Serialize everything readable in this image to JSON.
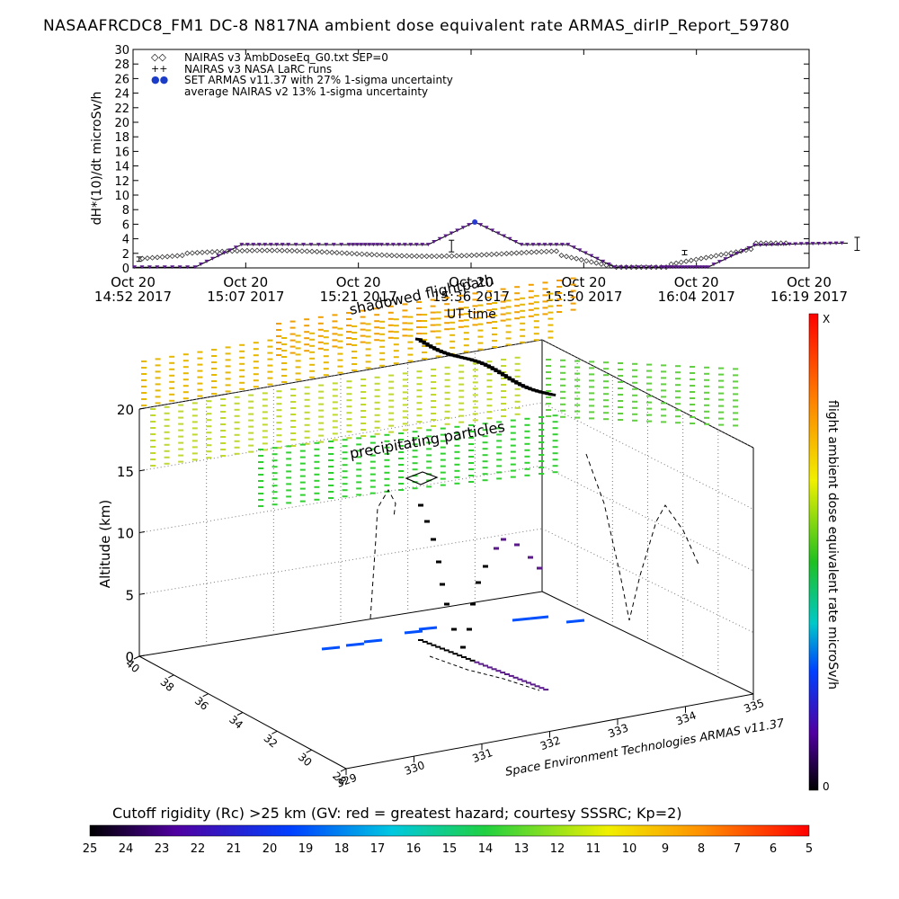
{
  "chart_data": [
    {
      "type": "line",
      "title": "NASAAFRCDC8_FM1 DC-8   N817NA ambient dose equivalent rate ARMAS_dirIP_Report_59780",
      "ylabel": "dH*(10)/dt microSv/h",
      "xlabel": "UT time",
      "ylim": [
        0,
        30
      ],
      "yticks": [
        "0",
        "2",
        "4",
        "6",
        "8",
        "10",
        "12",
        "14",
        "16",
        "18",
        "20",
        "22",
        "24",
        "26",
        "28",
        "30"
      ],
      "xticks": [
        [
          "Oct 20",
          "14:52 2017"
        ],
        [
          "Oct 20",
          "15:07 2017"
        ],
        [
          "Oct 20",
          "15:21 2017"
        ],
        [
          "Oct 20",
          "15:36 2017"
        ],
        [
          "Oct 20",
          "15:50 2017"
        ],
        [
          "Oct 20",
          "16:04 2017"
        ],
        [
          "Oct 20",
          "16:19 2017"
        ]
      ],
      "legend_placement": "top-left",
      "legend": [
        {
          "marker": "◇◇",
          "label": "NAIRAS v3 AmbDoseEq_G0.txt SEP=0"
        },
        {
          "marker": "++",
          "label": "NAIRAS v3 NASA LaRC runs"
        },
        {
          "marker": "●●",
          "label": "SET ARMAS v11.37 with 27% 1-sigma uncertainty"
        },
        {
          "marker": "",
          "label": "average NAIRAS v2 13% 1-sigma uncertainty"
        }
      ],
      "series": [
        {
          "name": "SET ARMAS v11.37 with 27% 1-sigma uncertainty",
          "color": "#5a1a8a",
          "x": [
            14.87,
            15.0,
            15.1,
            15.2,
            15.33,
            15.4,
            15.5,
            15.6,
            15.7,
            15.8,
            15.9,
            16.0,
            16.05,
            16.1,
            16.2,
            16.3,
            16.4
          ],
          "y": [
            0.1,
            0.1,
            3.2,
            3.2,
            3.2,
            3.2,
            3.2,
            6.3,
            3.2,
            3.2,
            0.1,
            0.1,
            0.1,
            0.1,
            3.1,
            3.3,
            3.4
          ]
        }
      ]
    },
    {
      "type": "scatter",
      "ylabel": "Altitude (km)",
      "zticks": [
        "0",
        "5",
        "10",
        "15",
        "20"
      ],
      "lat_ticks": [
        "40",
        "38",
        "36",
        "34",
        "32",
        "30",
        "28"
      ],
      "lon_ticks": [
        "329",
        "330",
        "331",
        "332",
        "333",
        "334",
        "335"
      ],
      "annotations": [
        "shadowed flightpath",
        "precipitating particles"
      ],
      "credit": "Space Environment Technologies ARMAS v11.37"
    }
  ],
  "colorbar_horizontal": {
    "title": "Cutoff rigidity (Rc) >25 km (GV: red = greatest hazard; courtesy SSSRC; Kp=2)",
    "ticks": [
      "25",
      "24",
      "23",
      "22",
      "21",
      "20",
      "19",
      "18",
      "17",
      "16",
      "15",
      "14",
      "13",
      "12",
      "11",
      "10",
      "9",
      "8",
      "7",
      "6",
      "5"
    ]
  },
  "colorbar_vertical": {
    "title": "flight ambient dose equivalent rate microSv/h",
    "top_label": "X",
    "bottom_label": "0"
  },
  "colors": {
    "armas": "#5a1a8a",
    "flight_low": "#0050ff",
    "yellow": "#e0e000",
    "green": "#30d030"
  }
}
